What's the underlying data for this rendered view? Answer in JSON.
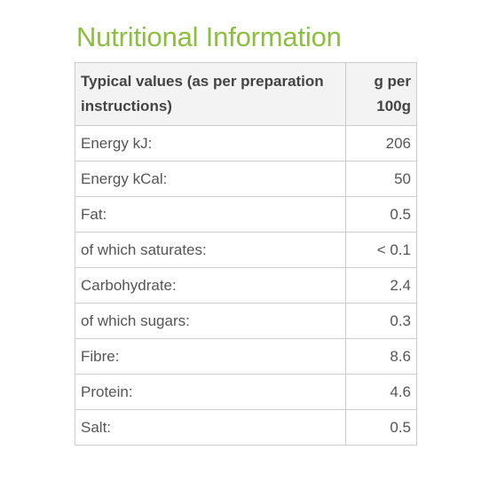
{
  "title": "Nutritional Information",
  "table": {
    "headers": {
      "label": "Typical values (as per preparation instructions)",
      "value": "g per 100g"
    },
    "rows": [
      {
        "label": "Energy kJ:",
        "value": "206"
      },
      {
        "label": "Energy kCal:",
        "value": "50"
      },
      {
        "label": "Fat:",
        "value": "0.5"
      },
      {
        "label": "of which saturates:",
        "value": "< 0.1"
      },
      {
        "label": "Carbohydrate:",
        "value": "2.4"
      },
      {
        "label": "of which sugars:",
        "value": "0.3"
      },
      {
        "label": "Fibre:",
        "value": "8.6"
      },
      {
        "label": "Protein:",
        "value": "4.6"
      },
      {
        "label": "Salt:",
        "value": "0.5"
      }
    ]
  },
  "colors": {
    "title": "#8cbf3f",
    "header_background": "#f3f3f3",
    "border": "#cccccc",
    "text": "#555555"
  }
}
